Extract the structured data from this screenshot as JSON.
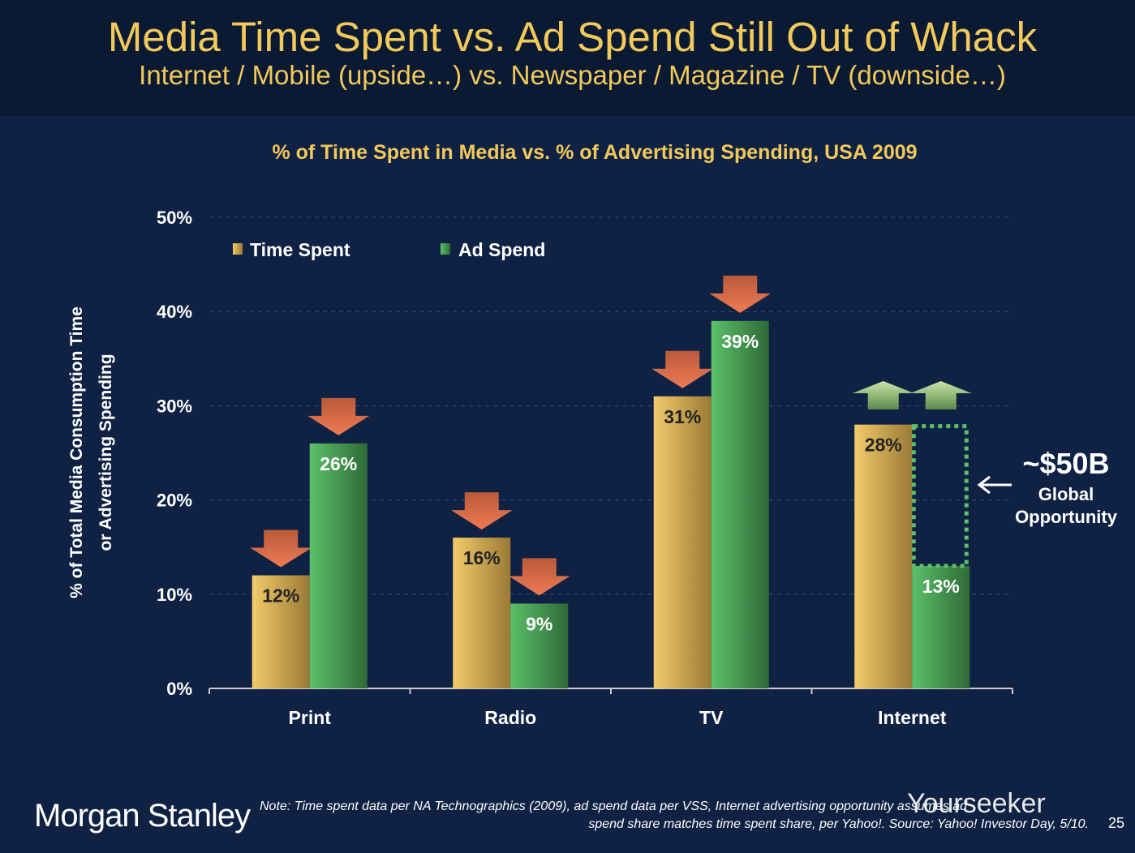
{
  "slide": {
    "title": "Media Time Spent vs. Ad Spend Still Out of Whack",
    "subtitle": "Internet / Mobile (upside…) vs. Newspaper / Magazine / TV (downside…)",
    "logo": "Morgan Stanley",
    "note_line1": "Note: Time spent data per NA Technographics (2009), ad spend data per VSS, Internet advertising opportunity assumes ad",
    "note_line2": "spend share matches time spent share, per Yahoo!. Source: Yahoo! Investor Day, 5/10.",
    "page_number": "25",
    "watermark": "Yourseeker"
  },
  "chart_data": {
    "type": "bar",
    "title": "% of Time Spent in Media vs. % of Advertising Spending, USA 2009",
    "ylabel_line1": "% of Total Media Consumption Time",
    "ylabel_line2": "or Advertising Spending",
    "xlabel": "",
    "ylim": [
      0,
      50
    ],
    "yticks": [
      "0%",
      "10%",
      "20%",
      "30%",
      "40%",
      "50%"
    ],
    "grid": true,
    "legend_position": "top-left",
    "categories": [
      "Print",
      "Radio",
      "TV",
      "Internet"
    ],
    "series": [
      {
        "name": "Time Spent",
        "values": [
          12,
          16,
          31,
          28
        ],
        "labels": [
          "12%",
          "16%",
          "31%",
          "28%"
        ],
        "color": "#e8b85a",
        "arrows": [
          "down",
          "down",
          "down",
          "up"
        ]
      },
      {
        "name": "Ad Spend",
        "values": [
          26,
          9,
          39,
          13
        ],
        "labels": [
          "26%",
          "9%",
          "39%",
          "13%"
        ],
        "color": "#4caf50",
        "arrows": [
          "down",
          "down",
          "down",
          "up"
        ]
      }
    ],
    "annotation": {
      "value": "~$50B",
      "line1": "Global",
      "line2": "Opportunity",
      "gap_to": 28
    },
    "colors": {
      "title": "#f2c95a",
      "arrow_down": "#e0704a",
      "arrow_up": "#a8d08d"
    }
  }
}
